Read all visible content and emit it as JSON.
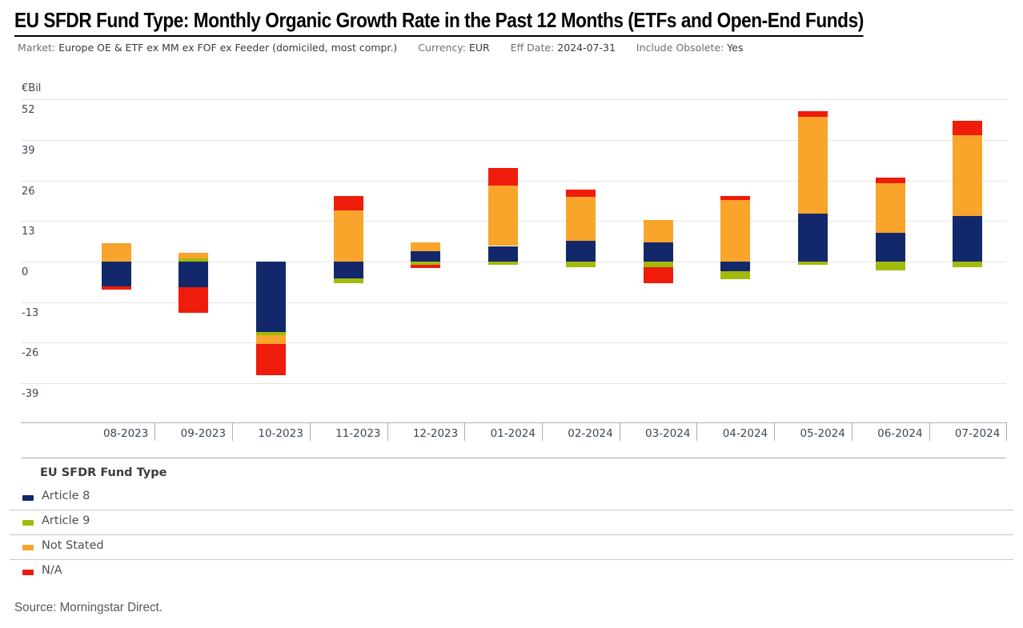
{
  "title": "EU SFDR Fund Type: Monthly Organic Growth Rate in the Past 12 Months (ETFs and Open-End Funds)",
  "subtitle": {
    "market_label": "Market:",
    "market_value": "Europe OE & ETF ex MM ex FOF ex Feeder (domiciled, most compr.)",
    "currency_label": "Currency:",
    "currency_value": "EUR",
    "eff_date_label": "Eff Date:",
    "eff_date_value": "2024-07-31",
    "include_obsolete_label": "Include Obsolete:",
    "include_obsolete_value": "Yes"
  },
  "chart_data": {
    "type": "bar",
    "stacked": true,
    "title": "EU SFDR Fund Type: Monthly Organic Growth Rate in the Past 12 Months (ETFs and Open-End Funds)",
    "ylabel": "€Bil",
    "unit_label": "€Bil",
    "categories": [
      "08-2023",
      "09-2023",
      "10-2023",
      "11-2023",
      "12-2023",
      "01-2024",
      "02-2024",
      "03-2024",
      "04-2024",
      "05-2024",
      "06-2024",
      "07-2024"
    ],
    "series": [
      {
        "name": "Article 8",
        "color": "#13286b",
        "values": [
          -7.9,
          -8.1,
          -22.5,
          -5.3,
          3.3,
          5.0,
          6.7,
          6.2,
          -3.0,
          15.4,
          9.2,
          14.7
        ]
      },
      {
        "name": "Article 9",
        "color": "#a2ba0b",
        "values": [
          0,
          0.9,
          -1.0,
          -1.5,
          -1.1,
          -1.0,
          -1.9,
          -1.9,
          -2.6,
          -0.9,
          -2.7,
          -1.7
        ]
      },
      {
        "name": "Not Stated",
        "color": "#f9a42b",
        "values": [
          5.8,
          1.9,
          -3.0,
          16.3,
          2.9,
          19.4,
          14.0,
          7.1,
          19.7,
          31.0,
          16.0,
          25.9
        ]
      },
      {
        "name": "N/A",
        "color": "#ef1b0b",
        "values": [
          -1.0,
          -8.3,
          -10.0,
          4.7,
          -1.0,
          5.7,
          2.4,
          -5.0,
          1.3,
          1.7,
          1.7,
          4.5
        ]
      }
    ],
    "yticks": [
      52,
      39,
      26,
      13,
      0,
      -13,
      -26,
      -39
    ],
    "ylim": [
      -45,
      57
    ],
    "grid": "horizontal",
    "legend_position": "bottom",
    "legend_title": "EU SFDR Fund Type"
  },
  "legend": {
    "title": "EU SFDR Fund Type",
    "items": [
      {
        "label": "Article 8",
        "color": "#13286b"
      },
      {
        "label": "Article 9",
        "color": "#a2ba0b"
      },
      {
        "label": "Not Stated",
        "color": "#f9a42b"
      },
      {
        "label": "N/A",
        "color": "#ef1b0b"
      }
    ]
  },
  "source": "Source: Morningstar Direct."
}
